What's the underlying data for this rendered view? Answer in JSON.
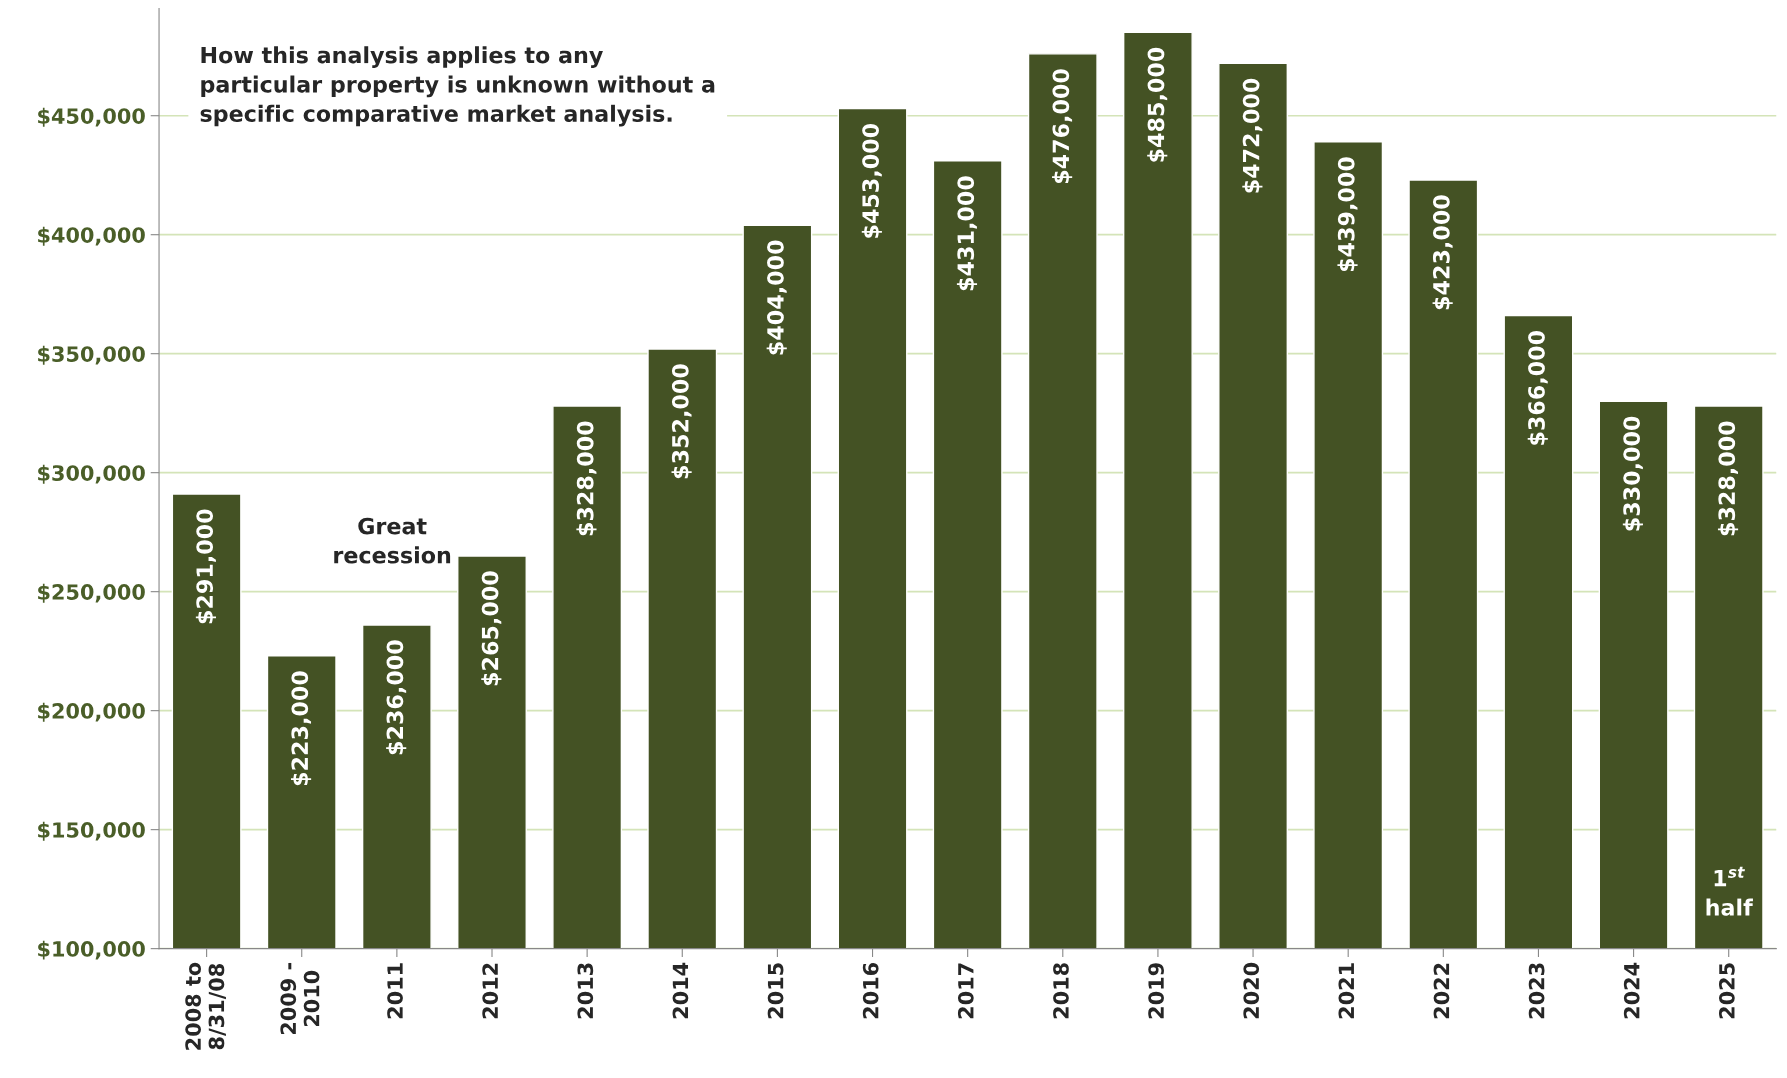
{
  "chart_data": {
    "type": "bar",
    "categories": [
      "2008 to\n8/31/08",
      "2009 -\n2010",
      "2011",
      "2012",
      "2013",
      "2014",
      "2015",
      "2016",
      "2017",
      "2018",
      "2019",
      "2020",
      "2021",
      "2022",
      "2023",
      "2024",
      "2025"
    ],
    "values": [
      291000,
      223000,
      236000,
      265000,
      328000,
      352000,
      404000,
      453000,
      431000,
      476000,
      485000,
      472000,
      439000,
      423000,
      366000,
      330000,
      328000
    ],
    "value_labels": [
      "$291,000",
      "$223,000",
      "$236,000",
      "$265,000",
      "$328,000",
      "$352,000",
      "$404,000",
      "$453,000",
      "$431,000",
      "$476,000",
      "$485,000",
      "$472,000",
      "$439,000",
      "$423,000",
      "$366,000",
      "$330,000",
      "$328,000"
    ],
    "color": "#445224",
    "ylim": [
      100000,
      495000
    ],
    "yticks": [
      {
        "value": 100000,
        "label": "$100,000"
      },
      {
        "value": 150000,
        "label": "$150,000"
      },
      {
        "value": 200000,
        "label": "$200,000"
      },
      {
        "value": 250000,
        "label": "$250,000"
      },
      {
        "value": 300000,
        "label": "$300,000"
      },
      {
        "value": 350000,
        "label": "$350,000"
      },
      {
        "value": 400000,
        "label": "$400,000"
      },
      {
        "value": 450000,
        "label": "$450,000"
      }
    ],
    "grid": "y",
    "annotations": [
      "How this analysis applies to any\nparticular property is unknown without a\nspecific comparative market analysis.",
      "Great\nrecession",
      "1$^{st}$\nhalf"
    ]
  }
}
